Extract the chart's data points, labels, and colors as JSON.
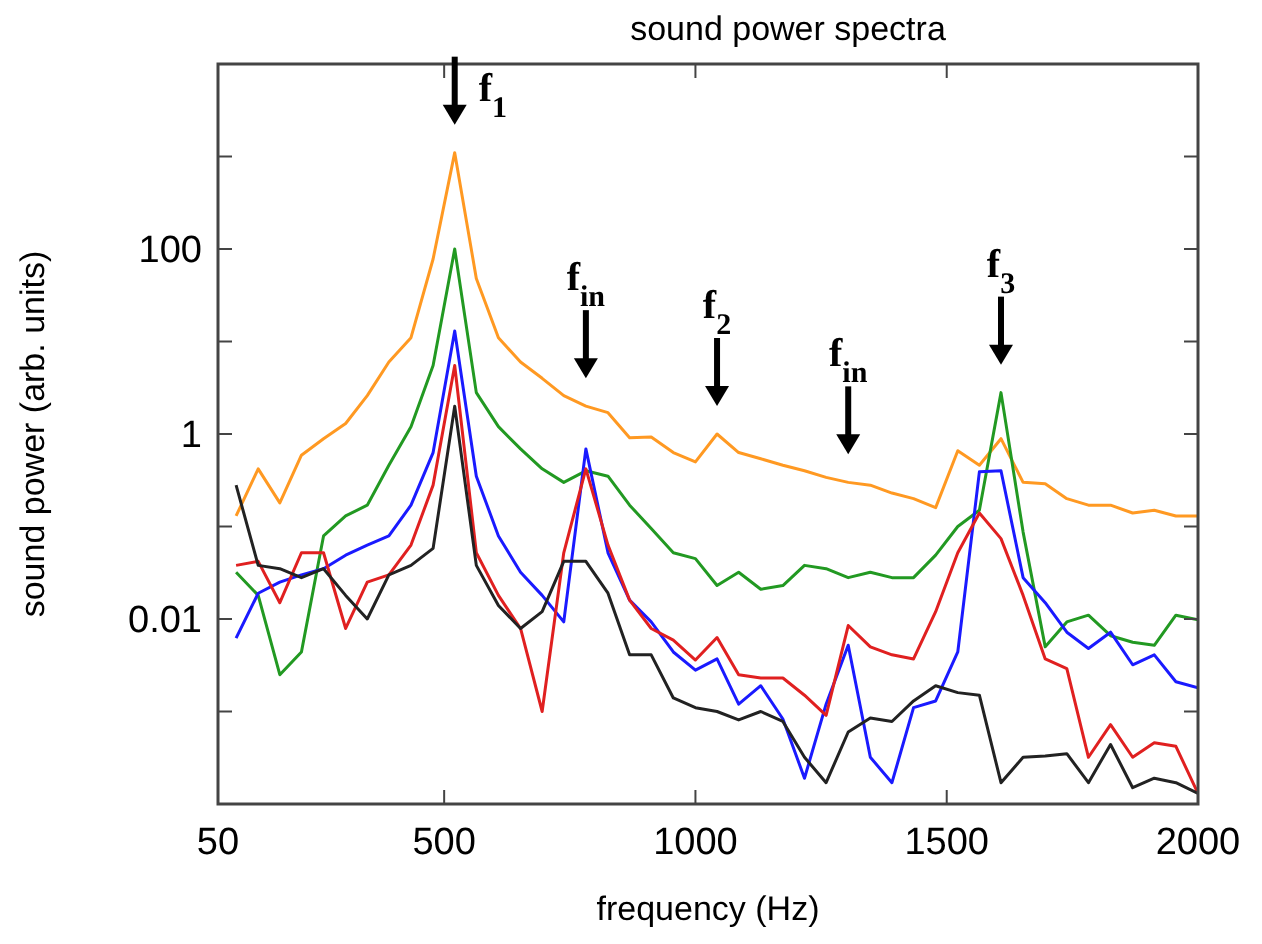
{
  "chart_data": {
    "type": "line",
    "title": "sound power spectra",
    "xlabel": "frequency (Hz)",
    "ylabel": "sound power (arb. units)",
    "log": "y",
    "grid": false,
    "xlim": [
      50,
      2000
    ],
    "xticks": [
      50,
      500,
      1000,
      1500,
      2000
    ],
    "ylim": [
      0.0001,
      10000
    ],
    "yticks": [
      {
        "value": 0.001,
        "label": null
      },
      0.01,
      {
        "value": 0.1,
        "label": null
      },
      1,
      {
        "value": 10,
        "label": null
      },
      100,
      {
        "value": 1000,
        "label": null
      }
    ],
    "x": [
      86,
      130,
      173,
      216,
      260,
      304,
      347,
      390,
      434,
      478,
      521,
      564,
      608,
      652,
      695,
      738,
      782,
      826,
      869,
      912,
      956,
      1000,
      1043,
      1086,
      1130,
      1174,
      1217,
      1260,
      1304,
      1348,
      1391,
      1434,
      1478,
      1522,
      1565,
      1608,
      1652,
      1696,
      1739,
      1782,
      1826,
      1870,
      1913,
      1956,
      2000
    ],
    "series": [
      {
        "color": "#ff9922",
        "values": [
          0.13,
          0.42,
          0.18,
          0.59,
          0.89,
          1.3,
          2.6,
          6,
          11,
          78,
          1100,
          48,
          11,
          6,
          4,
          2.6,
          2,
          1.7,
          0.91,
          0.93,
          0.63,
          0.5,
          1,
          0.63,
          0.54,
          0.46,
          0.4,
          0.34,
          0.3,
          0.28,
          0.23,
          0.2,
          0.16,
          0.66,
          0.46,
          0.89,
          0.3,
          0.29,
          0.2,
          0.17,
          0.17,
          0.14,
          0.15,
          0.13,
          0.13
        ]
      },
      {
        "color": "#229922",
        "values": [
          0.032,
          0.018,
          0.0025,
          0.0044,
          0.079,
          0.13,
          0.17,
          0.46,
          1.2,
          5.5,
          100,
          2.8,
          1.2,
          0.69,
          0.42,
          0.3,
          0.4,
          0.35,
          0.17,
          0.095,
          0.052,
          0.045,
          0.023,
          0.032,
          0.021,
          0.023,
          0.038,
          0.035,
          0.028,
          0.032,
          0.028,
          0.028,
          0.049,
          0.1,
          0.15,
          2.8,
          0.087,
          0.005,
          0.0093,
          0.011,
          0.0066,
          0.0056,
          0.0052,
          0.011,
          0.0098
        ]
      },
      {
        "color": "#1a1aff",
        "values": [
          0.0062,
          0.019,
          0.025,
          0.03,
          0.035,
          0.049,
          0.063,
          0.079,
          0.17,
          0.63,
          13,
          0.35,
          0.079,
          0.032,
          0.018,
          0.0093,
          0.69,
          0.052,
          0.016,
          0.0093,
          0.0044,
          0.0028,
          0.0037,
          0.0012,
          0.0019,
          0.00083,
          0.00019,
          0.0012,
          0.0052,
          0.00032,
          0.00017,
          0.0011,
          0.0013,
          0.0044,
          0.39,
          0.4,
          0.028,
          0.015,
          0.0072,
          0.0048,
          0.0072,
          0.0032,
          0.0041,
          0.0021,
          0.0018
        ]
      },
      {
        "color": "#e02020",
        "values": [
          0.038,
          0.042,
          0.015,
          0.052,
          0.052,
          0.0079,
          0.025,
          0.03,
          0.063,
          0.28,
          5.5,
          0.052,
          0.018,
          0.0079,
          0.001,
          0.052,
          0.42,
          0.063,
          0.016,
          0.0079,
          0.0059,
          0.0036,
          0.0063,
          0.0025,
          0.0023,
          0.0023,
          0.0015,
          0.00091,
          0.0085,
          0.005,
          0.0041,
          0.0037,
          0.012,
          0.052,
          0.14,
          0.074,
          0.018,
          0.0037,
          0.0029,
          0.00032,
          0.00072,
          0.00032,
          0.00046,
          0.00042,
          0.00013
        ]
      },
      {
        "color": "#222222",
        "values": [
          0.28,
          0.038,
          0.035,
          0.028,
          0.035,
          0.018,
          0.01,
          0.03,
          0.038,
          0.058,
          2,
          0.038,
          0.014,
          0.0079,
          0.012,
          0.042,
          0.042,
          0.019,
          0.0041,
          0.0041,
          0.0014,
          0.0011,
          0.001,
          0.00081,
          0.001,
          0.00078,
          0.00032,
          0.00017,
          0.0006,
          0.00085,
          0.00078,
          0.0013,
          0.0019,
          0.0016,
          0.0015,
          0.00017,
          0.00032,
          0.00033,
          0.00035,
          0.00017,
          0.00044,
          0.00015,
          0.00019,
          0.00017,
          0.00013
        ]
      }
    ],
    "annotations": [
      {
        "text": "f$_{1}$",
        "x": 521,
        "y": 1100
      },
      {
        "text": "f$_{in}$",
        "x": 782,
        "y": 2
      },
      {
        "text": "f$_{2}$",
        "x": 1043,
        "y": 1
      },
      {
        "text": "f$_{in}$",
        "x": 1304,
        "y": 0.3
      },
      {
        "text": "f$_{3}$",
        "x": 1608,
        "y": 2.8
      }
    ]
  }
}
